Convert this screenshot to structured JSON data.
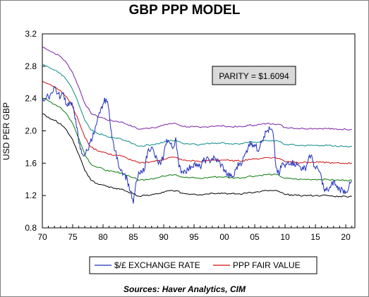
{
  "chart_data": {
    "type": "line",
    "title": "GBP PPP MODEL",
    "ylabel": "USD PER GBP",
    "xlabel": "",
    "ylim": [
      0.8,
      3.2
    ],
    "yticks": [
      "0.8",
      "1.2",
      "1.6",
      "2.0",
      "2.4",
      "2.8",
      "3.2"
    ],
    "xlim": [
      1970,
      2021.5
    ],
    "xticks": [
      "70",
      "75",
      "80",
      "85",
      "90",
      "95",
      "00",
      "05",
      "10",
      "15",
      "20"
    ],
    "annotation": "PARITY = $1.6094",
    "source": "Sources:  Haver Analytics, CIM",
    "legend": [
      "$/£ EXCHANGE RATE",
      "PPP FAIR VALUE"
    ],
    "colors": {
      "exchange": "#1f2fb8",
      "fair": "#d01010",
      "band_plus2": "#7b1fa2",
      "band_plus1": "#0a8a8a",
      "band_minus1": "#0a7a0a",
      "band_minus2": "#000000"
    },
    "series": [
      {
        "name": "$/£ EXCHANGE RATE",
        "x": [
          1970,
          1970.5,
          1971,
          1971.5,
          1972,
          1972.5,
          1973,
          1973.5,
          1974,
          1974.5,
          1975,
          1975.5,
          1976,
          1976.5,
          1977,
          1977.5,
          1978,
          1978.5,
          1979,
          1979.5,
          1980,
          1980.5,
          1981,
          1981.5,
          1982,
          1982.5,
          1983,
          1983.5,
          1984,
          1984.5,
          1985,
          1985.5,
          1986,
          1986.5,
          1987,
          1987.5,
          1988,
          1988.5,
          1989,
          1989.5,
          1990,
          1990.5,
          1991,
          1991.5,
          1992,
          1992.5,
          1993,
          1993.5,
          1994,
          1994.5,
          1995,
          1995.5,
          1996,
          1996.5,
          1997,
          1997.5,
          1998,
          1998.5,
          1999,
          1999.5,
          2000,
          2000.5,
          2001,
          2001.5,
          2002,
          2002.5,
          2003,
          2003.5,
          2004,
          2004.5,
          2005,
          2005.5,
          2006,
          2006.5,
          2007,
          2007.5,
          2008,
          2008.5,
          2009,
          2009.5,
          2010,
          2010.5,
          2011,
          2011.5,
          2012,
          2012.5,
          2013,
          2013.5,
          2014,
          2014.5,
          2015,
          2015.5,
          2016,
          2016.5,
          2017,
          2017.5,
          2018,
          2018.5,
          2019,
          2019.5,
          2020,
          2020.5,
          2021
        ],
        "values": [
          2.4,
          2.39,
          2.42,
          2.47,
          2.55,
          2.46,
          2.42,
          2.47,
          2.32,
          2.35,
          2.3,
          2.15,
          1.85,
          1.72,
          1.71,
          1.76,
          1.9,
          1.96,
          2.1,
          2.22,
          2.33,
          2.4,
          2.25,
          1.9,
          1.75,
          1.6,
          1.52,
          1.47,
          1.4,
          1.25,
          1.1,
          1.38,
          1.47,
          1.48,
          1.6,
          1.78,
          1.8,
          1.7,
          1.62,
          1.58,
          1.7,
          1.9,
          1.85,
          1.78,
          1.92,
          1.55,
          1.5,
          1.51,
          1.52,
          1.56,
          1.6,
          1.56,
          1.55,
          1.62,
          1.65,
          1.63,
          1.66,
          1.65,
          1.62,
          1.58,
          1.52,
          1.45,
          1.44,
          1.43,
          1.55,
          1.6,
          1.63,
          1.72,
          1.83,
          1.85,
          1.83,
          1.75,
          1.87,
          1.93,
          2.0,
          2.02,
          1.98,
          1.55,
          1.45,
          1.6,
          1.55,
          1.62,
          1.61,
          1.6,
          1.58,
          1.56,
          1.52,
          1.56,
          1.7,
          1.65,
          1.53,
          1.52,
          1.42,
          1.25,
          1.27,
          1.3,
          1.38,
          1.3,
          1.28,
          1.27,
          1.25,
          1.3,
          1.38
        ]
      },
      {
        "name": "PPP FAIR VALUE",
        "x": [
          1970,
          1971,
          1972,
          1973,
          1974,
          1975,
          1976,
          1977,
          1978,
          1979,
          1980,
          1981,
          1982,
          1983,
          1984,
          1985,
          1986,
          1987,
          1988,
          1989,
          1990,
          1991,
          1992,
          1993,
          1994,
          1995,
          1996,
          1997,
          1998,
          1999,
          2000,
          2001,
          2002,
          2003,
          2004,
          2005,
          2006,
          2007,
          2008,
          2009,
          2010,
          2011,
          2012,
          2013,
          2014,
          2015,
          2016,
          2017,
          2018,
          2019,
          2020,
          2021
        ],
        "values": [
          2.62,
          2.58,
          2.54,
          2.5,
          2.42,
          2.3,
          2.12,
          1.92,
          1.8,
          1.76,
          1.74,
          1.71,
          1.7,
          1.69,
          1.66,
          1.63,
          1.6,
          1.61,
          1.62,
          1.63,
          1.65,
          1.67,
          1.67,
          1.64,
          1.63,
          1.63,
          1.62,
          1.63,
          1.64,
          1.64,
          1.64,
          1.63,
          1.63,
          1.63,
          1.65,
          1.65,
          1.66,
          1.67,
          1.67,
          1.66,
          1.62,
          1.62,
          1.61,
          1.61,
          1.61,
          1.61,
          1.61,
          1.61,
          1.6,
          1.6,
          1.6,
          1.6
        ]
      }
    ],
    "band_offsets": {
      "plus2": 0.42,
      "plus1": 0.21,
      "minus1": -0.21,
      "minus2": -0.41
    }
  }
}
